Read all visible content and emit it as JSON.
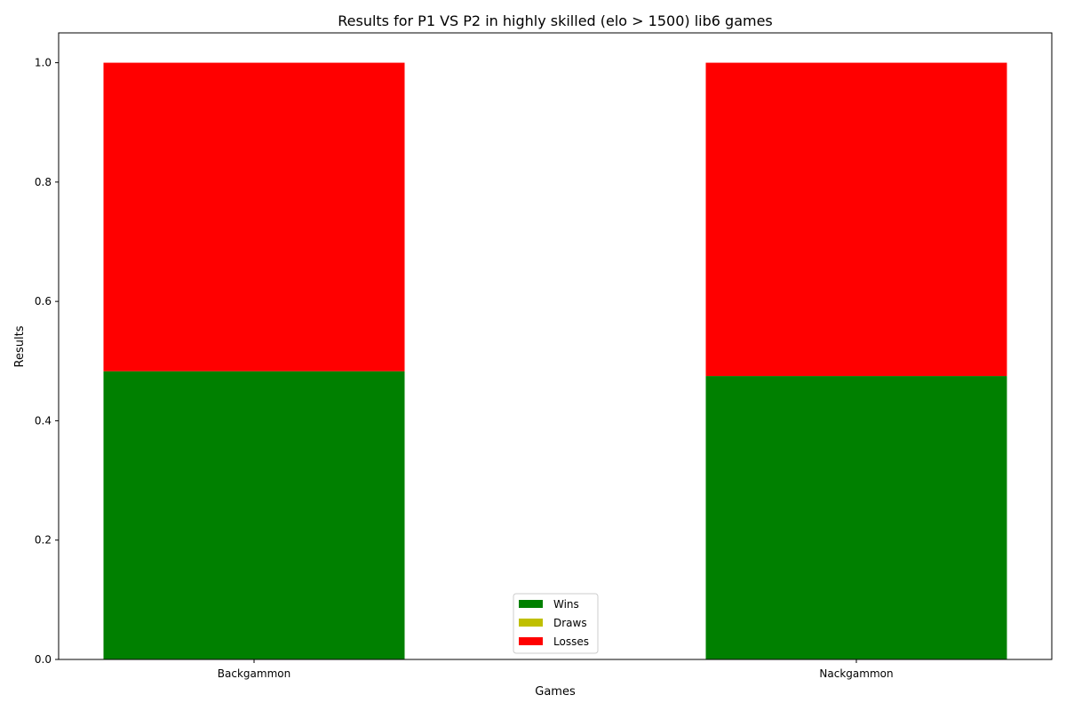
{
  "chart_data": {
    "type": "bar",
    "stacked": true,
    "title": "Results for P1 VS P2 in highly skilled (elo > 1500) lib6 games",
    "xlabel": "Games",
    "ylabel": "Results",
    "categories": [
      "Backgammon",
      "Nackgammon"
    ],
    "ylim": [
      0,
      1.05
    ],
    "yticks": [
      0.0,
      0.2,
      0.4,
      0.6,
      0.8,
      1.0
    ],
    "ytick_labels": [
      "0.0",
      "0.2",
      "0.4",
      "0.6",
      "0.8",
      "1.0"
    ],
    "series": [
      {
        "name": "Wins",
        "color": "#008000",
        "values": [
          0.483,
          0.475
        ]
      },
      {
        "name": "Draws",
        "color": "#bfbf00",
        "values": [
          0.0,
          0.0
        ]
      },
      {
        "name": "Losses",
        "color": "#ff0000",
        "values": [
          0.517,
          0.525
        ]
      }
    ],
    "grid": false,
    "legend_position": "bottom-center"
  }
}
